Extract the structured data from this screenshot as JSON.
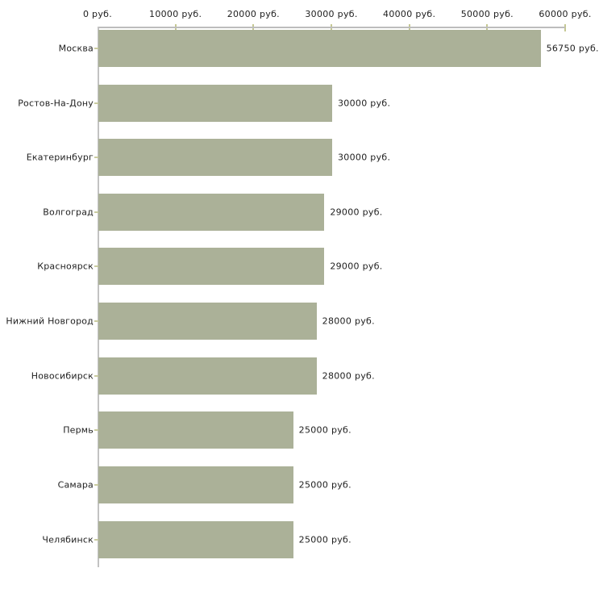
{
  "chart_data": {
    "type": "bar",
    "orientation": "horizontal",
    "title": "",
    "categories": [
      "Москва",
      "Ростов-На-Дону",
      "Екатеринбург",
      "Волгоград",
      "Красноярск",
      "Нижний Новгород",
      "Новосибирск",
      "Пермь",
      "Самара",
      "Челябинск"
    ],
    "values": [
      56750,
      30000,
      30000,
      29000,
      29000,
      28000,
      28000,
      25000,
      25000,
      25000
    ],
    "value_labels": [
      "56750 руб.",
      "30000 руб.",
      "30000 руб.",
      "29000 руб.",
      "29000 руб.",
      "28000 руб.",
      "28000 руб.",
      "25000 руб.",
      "25000 руб.",
      "25000 руб."
    ],
    "x_axis": {
      "position": "top",
      "min": 0,
      "max": 60000,
      "ticks": [
        0,
        10000,
        20000,
        30000,
        40000,
        50000,
        60000
      ],
      "tick_labels": [
        "0 руб.",
        "10000 руб.",
        "20000 руб.",
        "30000 руб.",
        "40000 руб.",
        "50000 руб.",
        "60000 руб."
      ]
    },
    "xlabel": "",
    "ylabel": "",
    "grid": false,
    "legend": null,
    "colors": {
      "bar": "#abb198",
      "axis": "#bdbdbd",
      "tick": "#c5c893",
      "text": "#212121",
      "background": "#ffffff"
    }
  }
}
